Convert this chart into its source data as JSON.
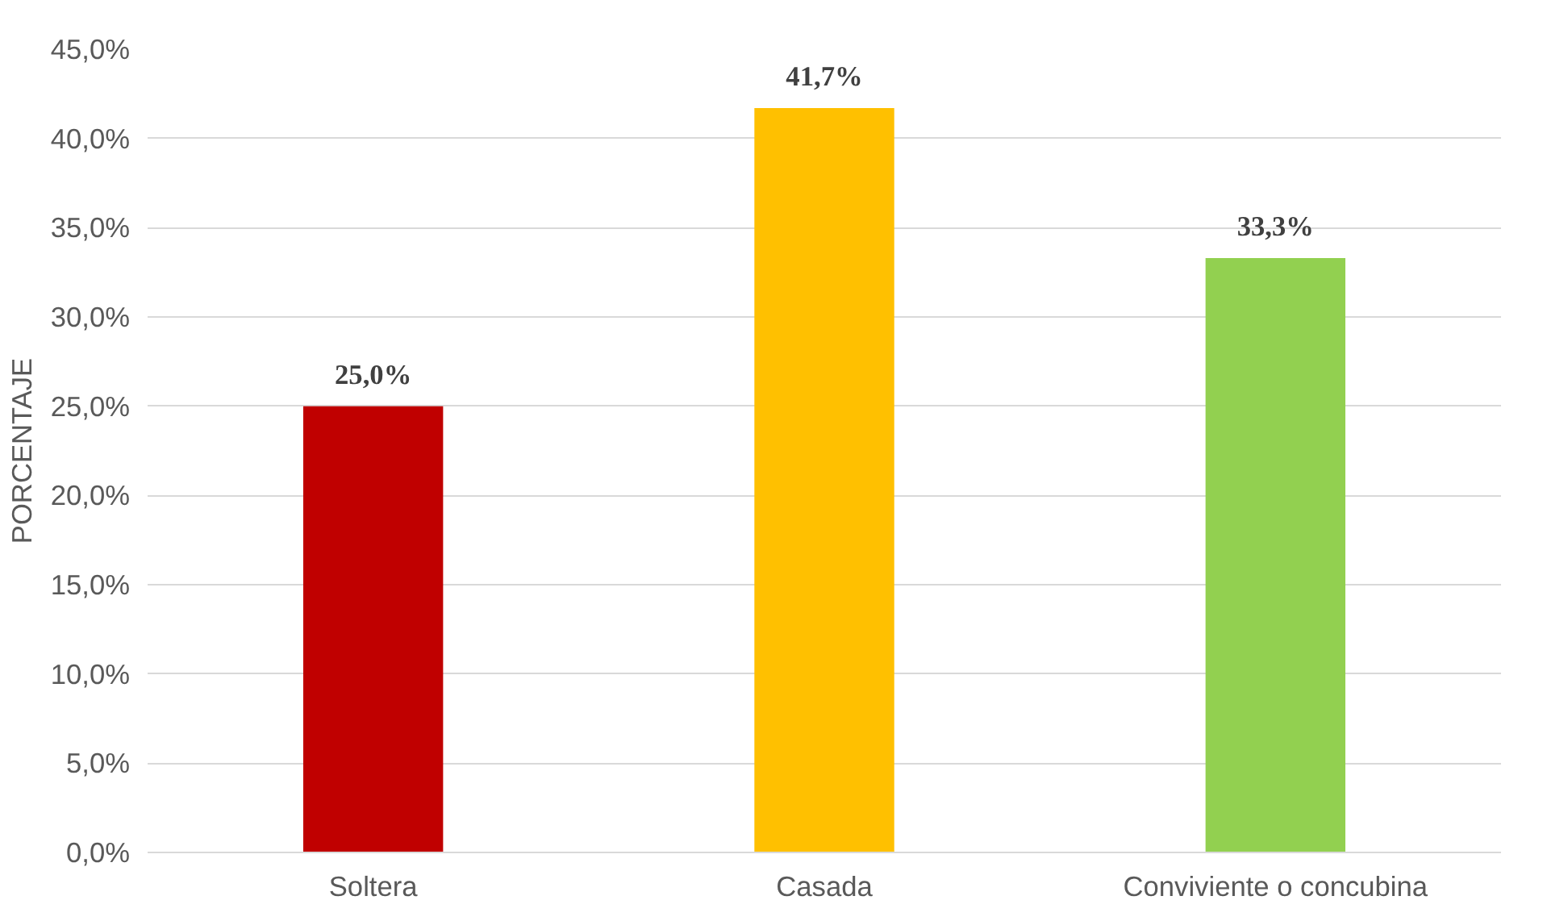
{
  "chart_data": {
    "type": "bar",
    "ylabel": "PORCENTAJE",
    "categories": [
      "Soltera",
      "Casada",
      "Conviviente o concubina"
    ],
    "values": [
      25.0,
      41.7,
      33.3
    ],
    "colors": [
      "#c00000",
      "#ffc000",
      "#92d050"
    ],
    "value_labels": [
      "25,0%",
      "41,7%",
      "33,3%"
    ],
    "ylim": [
      0,
      45
    ],
    "yticks": [
      {
        "value": 0,
        "label": "0,0%"
      },
      {
        "value": 5,
        "label": "5,0%"
      },
      {
        "value": 10,
        "label": "10,0%"
      },
      {
        "value": 15,
        "label": "15,0%"
      },
      {
        "value": 20,
        "label": "20,0%"
      },
      {
        "value": 25,
        "label": "25,0%"
      },
      {
        "value": 30,
        "label": "30,0%"
      },
      {
        "value": 35,
        "label": "35,0%"
      },
      {
        "value": 40,
        "label": "40,0%"
      },
      {
        "value": 45,
        "label": "45,0%"
      }
    ],
    "grid": "y"
  }
}
